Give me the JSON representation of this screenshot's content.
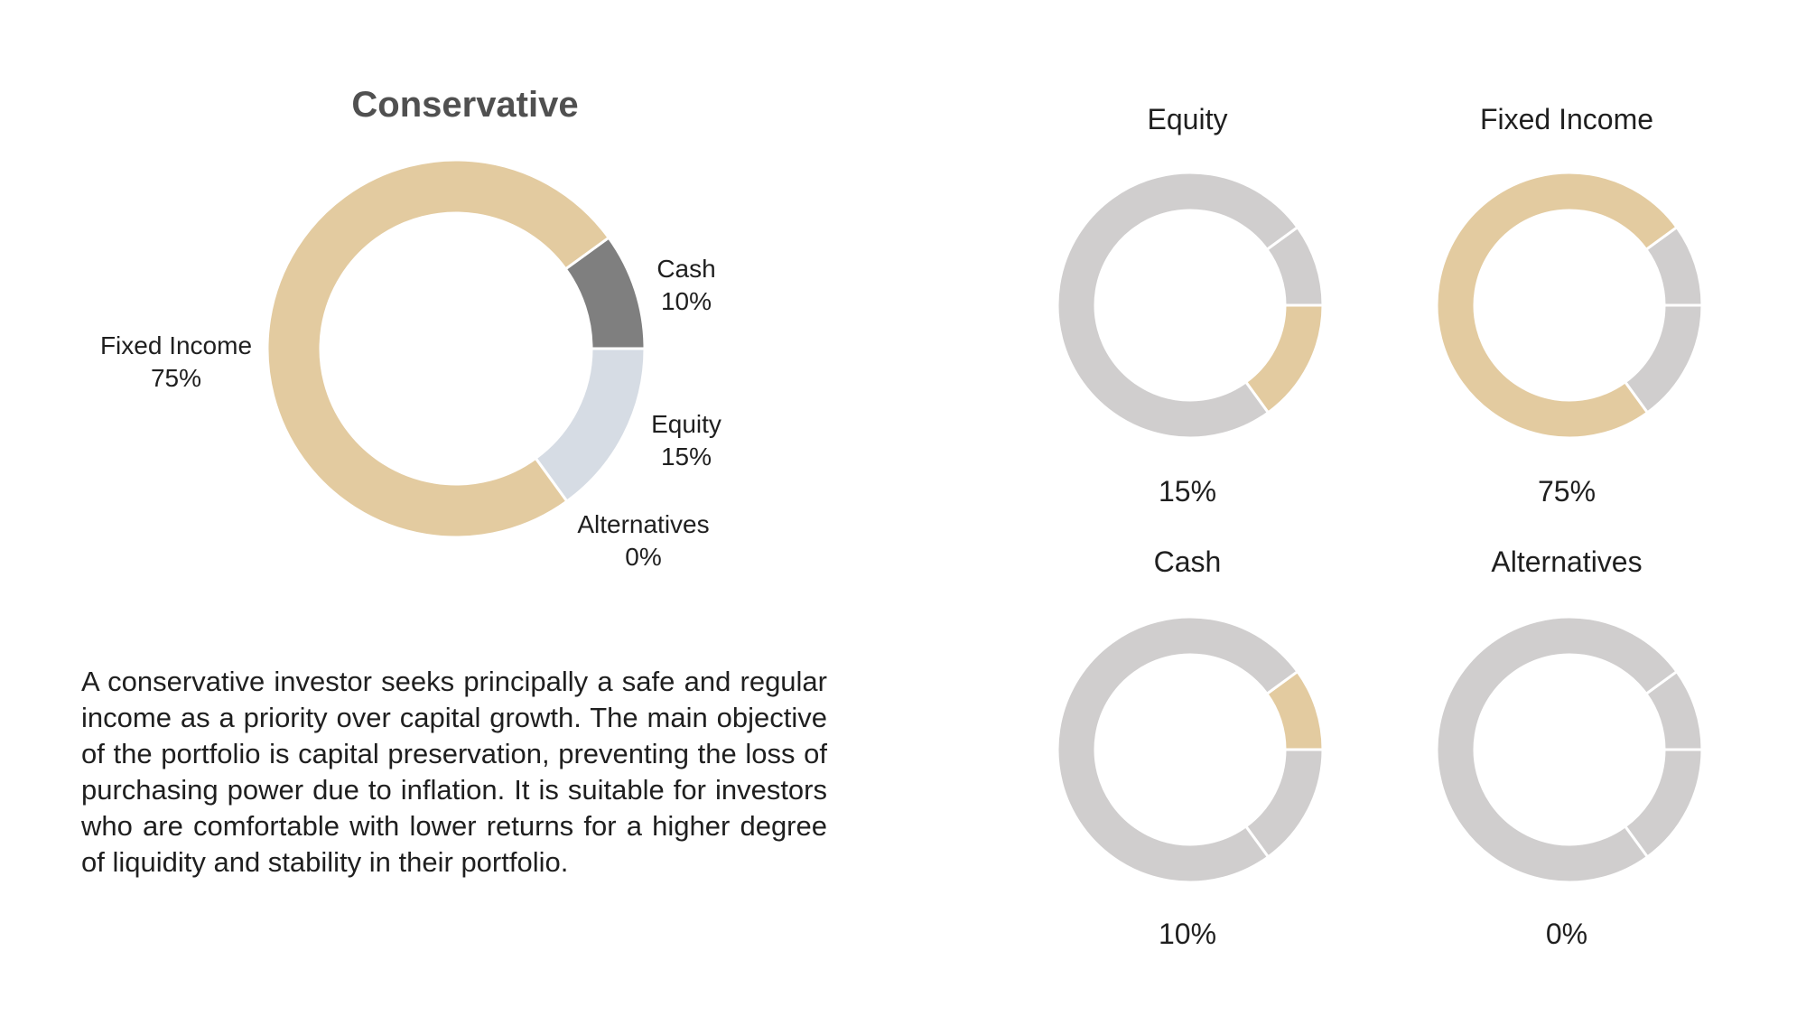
{
  "chart_data": [
    {
      "type": "pie",
      "style": "donut",
      "title": "Conservative",
      "slices": [
        {
          "label": "Cash",
          "value": 10,
          "value_label": "10%",
          "color": "#7f7f7f"
        },
        {
          "label": "Equity",
          "value": 15,
          "value_label": "15%",
          "color": "#d6dce4"
        },
        {
          "label": "Alternatives",
          "value": 0,
          "value_label": "0%",
          "color": "#d0cece"
        },
        {
          "label": "Fixed Income",
          "value": 75,
          "value_label": "75%",
          "color": "#e3cba0"
        }
      ]
    },
    {
      "type": "pie",
      "style": "donut",
      "title": "Equity",
      "highlight": "Equity",
      "value_label": "15%"
    },
    {
      "type": "pie",
      "style": "donut",
      "title": "Fixed Income",
      "highlight": "Fixed Income",
      "value_label": "75%"
    },
    {
      "type": "pie",
      "style": "donut",
      "title": "Cash",
      "highlight": "Cash",
      "value_label": "10%"
    },
    {
      "type": "pie",
      "style": "donut",
      "title": "Alternatives",
      "highlight": "Alternatives",
      "value_label": "0%"
    }
  ],
  "colors": {
    "highlight": "#e3cba0",
    "inactive": "#d0cece"
  },
  "description": "A conservative investor seeks principally a safe and regular income as a priority over capital growth. The main objective of the portfolio is capital preservation, preventing the loss of purchasing power due to inflation. It is suitable for investors who are comfortable with lower returns for a higher degree of liquidity and stability in their portfolio."
}
